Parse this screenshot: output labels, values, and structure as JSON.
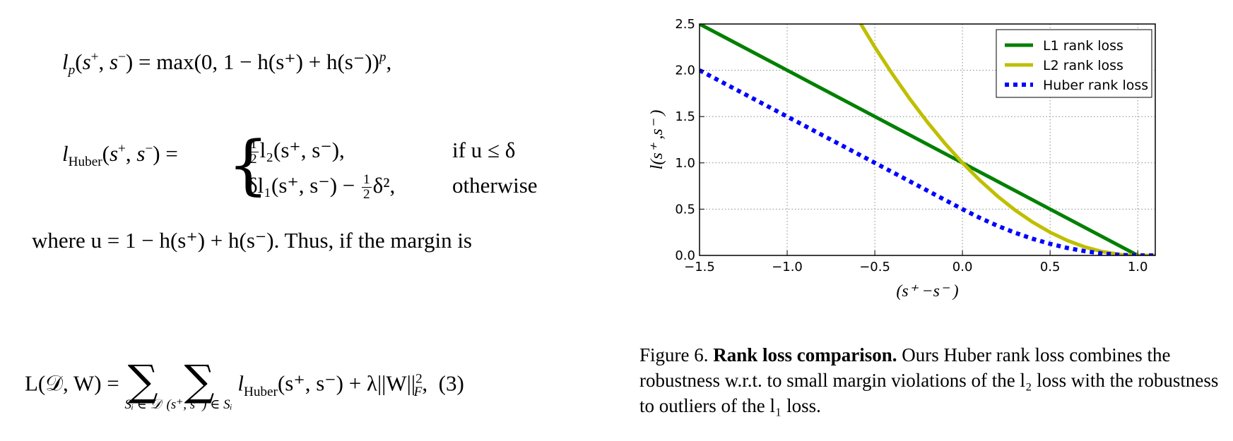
{
  "equations": {
    "lp_lhs": "l",
    "lp_sub": "p",
    "lp_rhs": "max(0, 1 − h(s⁺) + h(s⁻))",
    "lp_exp": "p",
    "huber_lhs": "l",
    "huber_sub": "Huber",
    "huber_case1": "l₂(s⁺, s⁻),",
    "huber_case1_cond": "if u ≤ δ",
    "huber_case2": "δl₁(s⁺, s⁻) −",
    "huber_case2_tail": "δ²,",
    "huber_case2_cond": "otherwise",
    "where_text": "where u = 1 − h(s⁺) + h(s⁻). Thus, if the margin is",
    "L_lhs": "L(𝒟, W) =",
    "L_sum1_sub": "Sᵢ ∈ 𝒟",
    "L_sum2_sub": "(s⁺, s⁻) ∈ Sᵢ",
    "L_term": "(s⁺, s⁻) + λ||W||",
    "L_norm_sup": "2",
    "L_norm_sub": "F",
    "L_number": "(3)"
  },
  "caption": {
    "prefix": "Figure 6.",
    "title": "Rank loss comparison.",
    "body": "Ours Huber rank loss combines the robustness w.r.t. to small margin violations of the l₂ loss with the robustness to outliers of the l₁ loss."
  },
  "chart_data": {
    "type": "line",
    "xlabel": "(s⁺ −s⁻ )",
    "ylabel": "l(s⁺ ,s⁻ )",
    "xlim": [
      -1.5,
      1.1
    ],
    "ylim": [
      0.0,
      2.5
    ],
    "xticks": [
      -1.5,
      -1.0,
      -0.5,
      0.0,
      0.5,
      1.0
    ],
    "xtick_labels": [
      "−1.5",
      "−1.0",
      "−0.5",
      "0.0",
      "0.5",
      "1.0"
    ],
    "yticks": [
      0.0,
      0.5,
      1.0,
      1.5,
      2.0,
      2.5
    ],
    "ytick_labels": [
      "0.0",
      "0.5",
      "1.0",
      "1.5",
      "2.0",
      "2.5"
    ],
    "grid": true,
    "legend_position": "top-right",
    "series": [
      {
        "name": "L1 rank loss",
        "color": "#008000",
        "style": "solid",
        "x": [
          -1.5,
          -1.0,
          -0.5,
          0.0,
          0.5,
          1.0,
          1.1
        ],
        "y": [
          2.5,
          2.0,
          1.5,
          1.0,
          0.5,
          0.0,
          0.0
        ]
      },
      {
        "name": "L2 rank loss",
        "color": "#bfbf00",
        "style": "solid",
        "x": [
          -0.58,
          -0.5,
          -0.4,
          -0.3,
          -0.2,
          -0.1,
          0.0,
          0.1,
          0.2,
          0.3,
          0.4,
          0.5,
          0.6,
          0.7,
          0.8,
          0.9,
          1.0,
          1.1
        ],
        "y": [
          2.5,
          2.25,
          1.96,
          1.69,
          1.44,
          1.21,
          1.0,
          0.81,
          0.64,
          0.49,
          0.36,
          0.25,
          0.16,
          0.09,
          0.04,
          0.01,
          0.0,
          0.0
        ]
      },
      {
        "name": "Huber rank loss",
        "color": "#0000ff",
        "style": "dotted",
        "x": [
          -1.5,
          -1.0,
          -0.5,
          0.0,
          0.1,
          0.2,
          0.3,
          0.4,
          0.5,
          0.6,
          0.7,
          0.8,
          0.9,
          1.0,
          1.1
        ],
        "y": [
          2.0,
          1.5,
          1.0,
          0.5,
          0.405,
          0.32,
          0.245,
          0.18,
          0.125,
          0.08,
          0.045,
          0.02,
          0.005,
          0.0,
          0.0
        ]
      }
    ]
  }
}
